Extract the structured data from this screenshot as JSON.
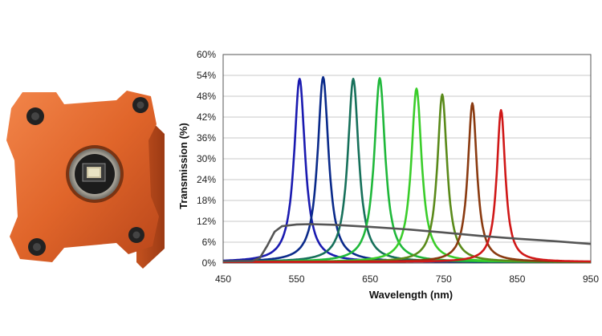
{
  "chart_data": {
    "type": "line",
    "title": "",
    "xlabel": "Wavelength (nm)",
    "ylabel": "Transmission (%)",
    "xlim": [
      450,
      950
    ],
    "ylim": [
      0,
      60
    ],
    "x_ticks": [
      "450",
      "550",
      "650",
      "750",
      "850",
      "950"
    ],
    "y_ticks": [
      "0%",
      "6%",
      "12%",
      "18%",
      "24%",
      "30%",
      "36%",
      "42%",
      "48%",
      "54%",
      "60%"
    ],
    "grid": "horizontal",
    "series": [
      {
        "color": "#1a1ab0",
        "peak_nm": 554,
        "peak_pct": 53.0,
        "fwhm_nm": 18
      },
      {
        "color": "#0a2a8a",
        "peak_nm": 586,
        "peak_pct": 53.5,
        "fwhm_nm": 18
      },
      {
        "color": "#16705a",
        "peak_nm": 627,
        "peak_pct": 53.0,
        "fwhm_nm": 18
      },
      {
        "color": "#1fb83a",
        "peak_nm": 663,
        "peak_pct": 53.2,
        "fwhm_nm": 18
      },
      {
        "color": "#3acd2a",
        "peak_nm": 713,
        "peak_pct": 50.2,
        "fwhm_nm": 17
      },
      {
        "color": "#5a8a1a",
        "peak_nm": 748,
        "peak_pct": 48.5,
        "fwhm_nm": 16
      },
      {
        "color": "#8a3a10",
        "peak_nm": 789,
        "peak_pct": 46.0,
        "fwhm_nm": 15
      },
      {
        "color": "#d01818",
        "peak_nm": 828,
        "peak_pct": 44.0,
        "fwhm_nm": 14
      },
      {
        "color": "#555555",
        "broadband": true,
        "points": [
          [
            450,
            0.5
          ],
          [
            490,
            0.6
          ],
          [
            500,
            1.5
          ],
          [
            510,
            5
          ],
          [
            520,
            9
          ],
          [
            530,
            10.6
          ],
          [
            550,
            11.1
          ],
          [
            570,
            11.2
          ],
          [
            600,
            11
          ],
          [
            650,
            10.4
          ],
          [
            700,
            9.7
          ],
          [
            750,
            8.8
          ],
          [
            800,
            7.8
          ],
          [
            850,
            7
          ],
          [
            900,
            6.3
          ],
          [
            950,
            5.5
          ]
        ]
      }
    ]
  },
  "camera": {
    "body_color": "#e0652a"
  }
}
